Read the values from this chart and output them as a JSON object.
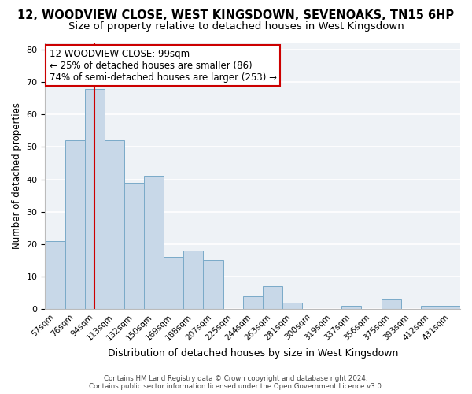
{
  "title": "12, WOODVIEW CLOSE, WEST KINGSDOWN, SEVENOAKS, TN15 6HP",
  "subtitle": "Size of property relative to detached houses in West Kingsdown",
  "xlabel": "Distribution of detached houses by size in West Kingsdown",
  "ylabel": "Number of detached properties",
  "bar_color": "#c8d8e8",
  "bar_edge_color": "#7aaac8",
  "categories": [
    "57sqm",
    "76sqm",
    "94sqm",
    "113sqm",
    "132sqm",
    "150sqm",
    "169sqm",
    "188sqm",
    "207sqm",
    "225sqm",
    "244sqm",
    "263sqm",
    "281sqm",
    "300sqm",
    "319sqm",
    "337sqm",
    "356sqm",
    "375sqm",
    "393sqm",
    "412sqm",
    "431sqm"
  ],
  "values": [
    21,
    52,
    68,
    52,
    39,
    41,
    16,
    18,
    15,
    0,
    4,
    7,
    2,
    0,
    0,
    1,
    0,
    3,
    0,
    1,
    1
  ],
  "vline_index": 2,
  "vline_color": "#cc0000",
  "ylim": [
    0,
    82
  ],
  "yticks": [
    0,
    10,
    20,
    30,
    40,
    50,
    60,
    70,
    80
  ],
  "annotation_title": "12 WOODVIEW CLOSE: 99sqm",
  "annotation_line1": "← 25% of detached houses are smaller (86)",
  "annotation_line2": "74% of semi-detached houses are larger (253) →",
  "footer_line1": "Contains HM Land Registry data © Crown copyright and database right 2024.",
  "footer_line2": "Contains public sector information licensed under the Open Government Licence v3.0.",
  "plot_bg_color": "#eef2f6",
  "title_fontsize": 10.5,
  "subtitle_fontsize": 9.5
}
